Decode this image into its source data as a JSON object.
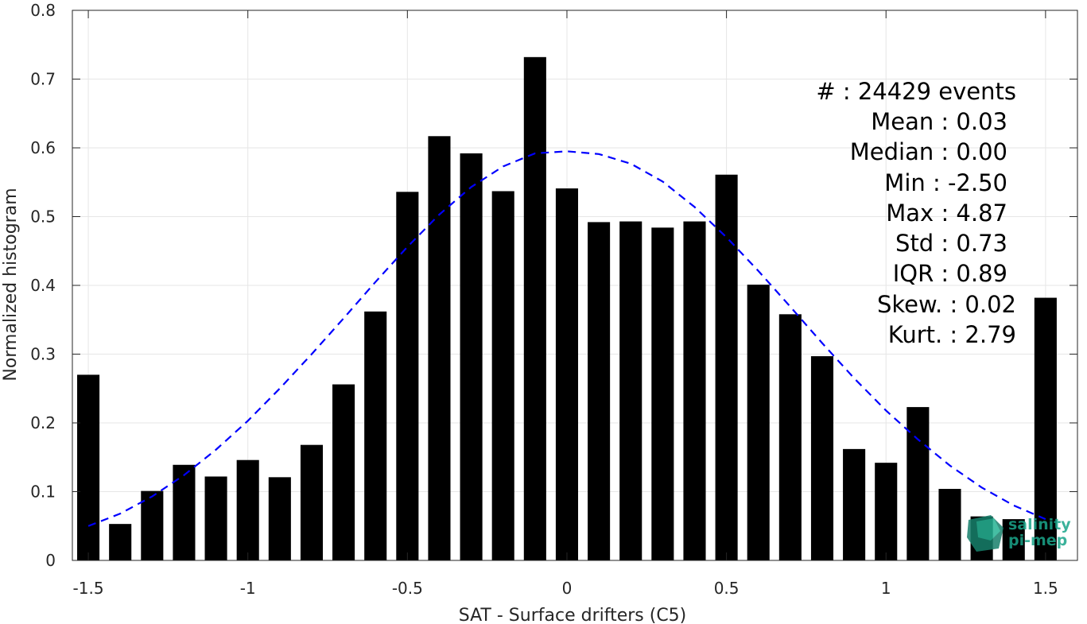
{
  "chart_data": {
    "type": "bar",
    "title": "",
    "xlabel": "SAT - Surface drifters (C5)",
    "ylabel": "Normalized histogram",
    "xlim": [
      -1.55,
      1.6
    ],
    "ylim": [
      0,
      0.8
    ],
    "xticks": [
      -1.5,
      -1,
      -0.5,
      0,
      0.5,
      1,
      1.5
    ],
    "xtick_labels": [
      "-1.5",
      "-1",
      "-0.5",
      "0",
      "0.5",
      "1",
      "1.5"
    ],
    "yticks": [
      0,
      0.1,
      0.2,
      0.3,
      0.4,
      0.5,
      0.6,
      0.7,
      0.8
    ],
    "ytick_labels": [
      "0",
      "0.1",
      "0.2",
      "0.3",
      "0.4",
      "0.5",
      "0.6",
      "0.7",
      "0.8"
    ],
    "grid": true,
    "bar_color": "#000000",
    "bar_width": 0.07,
    "x": [
      -1.5,
      -1.4,
      -1.3,
      -1.2,
      -1.1,
      -1.0,
      -0.9,
      -0.8,
      -0.7,
      -0.6,
      -0.5,
      -0.4,
      -0.3,
      -0.2,
      -0.1,
      0.0,
      0.1,
      0.2,
      0.3,
      0.4,
      0.5,
      0.6,
      0.7,
      0.8,
      0.9,
      1.0,
      1.1,
      1.2,
      1.3,
      1.4,
      1.5
    ],
    "values": [
      0.27,
      0.053,
      0.101,
      0.139,
      0.122,
      0.146,
      0.121,
      0.168,
      0.256,
      0.362,
      0.536,
      0.617,
      0.592,
      0.537,
      0.732,
      0.541,
      0.492,
      0.493,
      0.484,
      0.493,
      0.561,
      0.401,
      0.358,
      0.297,
      0.162,
      0.142,
      0.223,
      0.104,
      0.064,
      0.06,
      0.382
    ],
    "fit_curve": {
      "style": "dashed",
      "color": "#0000ff",
      "x": [
        -1.5,
        -1.4,
        -1.3,
        -1.2,
        -1.1,
        -1.0,
        -0.9,
        -0.8,
        -0.7,
        -0.6,
        -0.5,
        -0.4,
        -0.3,
        -0.2,
        -0.1,
        0.0,
        0.1,
        0.2,
        0.3,
        0.4,
        0.5,
        0.6,
        0.7,
        0.8,
        0.9,
        1.0,
        1.1,
        1.2,
        1.3,
        1.4,
        1.5
      ],
      "y": [
        0.05,
        0.068,
        0.093,
        0.124,
        0.161,
        0.203,
        0.25,
        0.3,
        0.352,
        0.405,
        0.456,
        0.503,
        0.543,
        0.573,
        0.592,
        0.595,
        0.591,
        0.577,
        0.551,
        0.514,
        0.47,
        0.421,
        0.369,
        0.316,
        0.265,
        0.218,
        0.176,
        0.138,
        0.106,
        0.08,
        0.06
      ]
    },
    "stats": [
      {
        "label": "#  :",
        "value": "24429 events"
      },
      {
        "label": "Mean :",
        "value": "0.03"
      },
      {
        "label": "Median :",
        "value": "0.00"
      },
      {
        "label": "Min :",
        "value": "-2.50"
      },
      {
        "label": "Max :",
        "value": "4.87"
      },
      {
        "label": "Std :",
        "value": "0.73"
      },
      {
        "label": "IQR :",
        "value": "0.89"
      },
      {
        "label": "Skew. :",
        "value": "0.02"
      },
      {
        "label": "Kurt. :",
        "value": "2.79"
      }
    ],
    "stats_text": [
      "#  : 24429 events",
      "Mean : 0.03",
      "Median : 0.00",
      "Min : -2.50",
      "Max : 4.87",
      "Std : 0.73",
      "IQR : 0.89",
      "Skew. : 0.02",
      "Kurt. : 2.79"
    ]
  },
  "logo": {
    "line1": "salinity",
    "line2": "pi-mep",
    "color": "#1aa58a"
  }
}
